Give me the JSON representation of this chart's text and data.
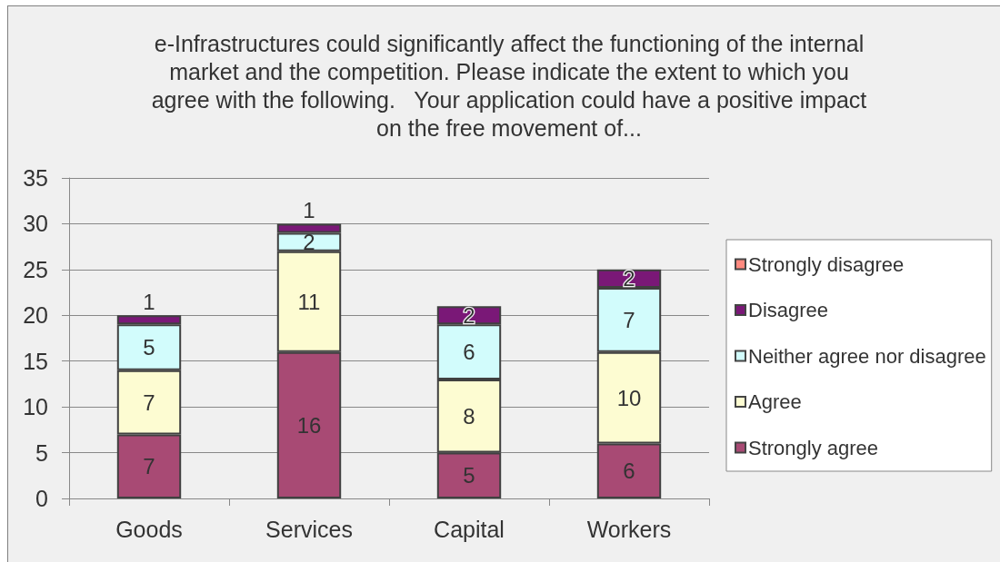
{
  "chart_data": {
    "type": "bar",
    "title": "e-Infrastructures could significantly affect the functioning of the internal\nmarket and the competition. Please indicate the extent to which you\nagree with the following.   Your application could have a positive impact\non the free movement of...",
    "categories": [
      "Goods",
      "Services",
      "Capital",
      "Workers"
    ],
    "series": [
      {
        "name": "Strongly agree",
        "color": "#a84a74",
        "values": [
          7,
          16,
          5,
          6
        ]
      },
      {
        "name": "Agree",
        "color": "#fdfcd2",
        "values": [
          7,
          11,
          8,
          10
        ]
      },
      {
        "name": "Neither agree nor disagree",
        "color": "#d2fcfc",
        "values": [
          5,
          2,
          6,
          7
        ]
      },
      {
        "name": "Disagree",
        "color": "#7a1877",
        "values": [
          1,
          1,
          2,
          2
        ]
      },
      {
        "name": "Strongly disagree",
        "color": "#ff8a80",
        "values": [
          null,
          null,
          null,
          null
        ]
      }
    ],
    "stacked": true,
    "ylim": [
      0,
      35
    ],
    "yticks": [
      0,
      5,
      10,
      15,
      20,
      25,
      30,
      35
    ],
    "grid": "y",
    "legend": "right",
    "data_labels": true
  }
}
